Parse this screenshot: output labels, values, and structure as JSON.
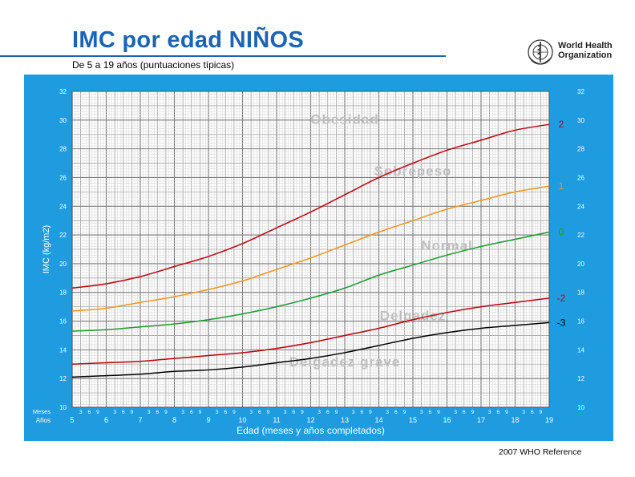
{
  "header": {
    "title": "IMC por edad NIÑOS",
    "subtitle": "De 5 a 19 años (puntuaciones típicas)"
  },
  "logo": {
    "name": "who-emblem-icon",
    "text_line1": "World Health",
    "text_line2": "Organization"
  },
  "footer": {
    "reference": "2007  WHO Reference"
  },
  "colors": {
    "panel": "#1f9ce0",
    "title": "#1a63b5",
    "sd2": "#c0000c",
    "sd1": "#f7941d",
    "sd0": "#1a9a2c",
    "sdm2": "#c0000c",
    "sdm3": "#000000",
    "zone_text": "#bfbfbf"
  },
  "chart_data": {
    "type": "line",
    "title": "IMC por edad NIÑOS",
    "xlabel": "Edad (meses y años completados)",
    "ylabel": "IMC (kg/m2)",
    "xlim": [
      5,
      19
    ],
    "ylim": [
      10,
      32
    ],
    "row_labels": {
      "months": "Meses",
      "years": "Años"
    },
    "month_ticks": [
      "3",
      "6",
      "9"
    ],
    "x_ticks": [
      "5",
      "6",
      "7",
      "8",
      "9",
      "10",
      "11",
      "12",
      "13",
      "14",
      "15",
      "16",
      "17",
      "18",
      "19"
    ],
    "y_ticks": [
      "10",
      "12",
      "14",
      "16",
      "18",
      "20",
      "22",
      "24",
      "26",
      "28",
      "30",
      "32"
    ],
    "x": [
      5,
      6,
      7,
      8,
      9,
      10,
      11,
      12,
      13,
      14,
      15,
      16,
      17,
      18,
      19
    ],
    "series": [
      {
        "name": "2",
        "color": "#c0000c",
        "values": [
          18.3,
          18.6,
          19.1,
          19.8,
          20.5,
          21.4,
          22.5,
          23.6,
          24.8,
          26.0,
          27.0,
          27.9,
          28.6,
          29.3,
          29.7
        ]
      },
      {
        "name": "1",
        "color": "#f7941d",
        "values": [
          16.7,
          16.9,
          17.3,
          17.7,
          18.2,
          18.8,
          19.6,
          20.4,
          21.3,
          22.2,
          23.0,
          23.8,
          24.4,
          25.0,
          25.4
        ]
      },
      {
        "name": "0",
        "color": "#1a9a2c",
        "values": [
          15.3,
          15.4,
          15.6,
          15.8,
          16.1,
          16.5,
          17.0,
          17.6,
          18.3,
          19.2,
          19.9,
          20.6,
          21.2,
          21.7,
          22.2
        ]
      },
      {
        "name": "-2",
        "color": "#c0000c",
        "values": [
          13.0,
          13.1,
          13.2,
          13.4,
          13.6,
          13.8,
          14.1,
          14.5,
          15.0,
          15.5,
          16.1,
          16.6,
          17.0,
          17.3,
          17.6
        ]
      },
      {
        "name": "-3",
        "color": "#000000",
        "values": [
          12.1,
          12.2,
          12.3,
          12.5,
          12.6,
          12.8,
          13.1,
          13.4,
          13.8,
          14.3,
          14.8,
          15.2,
          15.5,
          15.7,
          15.9
        ]
      }
    ],
    "zones": [
      {
        "label": "Obesidad",
        "x": 13.0,
        "y": 30.0
      },
      {
        "label": "Sobrepeso",
        "x": 15.0,
        "y": 26.4
      },
      {
        "label": "Normal",
        "x": 16.0,
        "y": 21.2
      },
      {
        "label": "Delgadez",
        "x": 15.0,
        "y": 16.3
      },
      {
        "label": "Delgadez grave",
        "x": 13.0,
        "y": 13.1
      }
    ]
  }
}
